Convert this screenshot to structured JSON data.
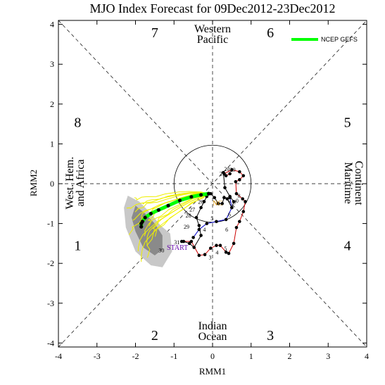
{
  "chart_data": {
    "type": "scatter",
    "title": "MJO Index Forecast for 09Dec2012-23Dec2012",
    "xlabel": "RMM1",
    "ylabel": "RMM2",
    "xlim": [
      -4,
      4
    ],
    "ylim": [
      -4.1,
      4.1
    ],
    "xticks": [
      "-4",
      "-3",
      "-2",
      "-1",
      "0",
      "1",
      "2",
      "3",
      "4"
    ],
    "yticks": [
      "-4",
      "-3",
      "-2",
      "-1",
      "0",
      "1",
      "2",
      "3",
      "4"
    ],
    "legend": {
      "label": "NCEP GEFS",
      "color": "#00ff00",
      "position": "top-right"
    },
    "phases": [
      {
        "num": "1",
        "x": -3.5,
        "y": -1.55
      },
      {
        "num": "2",
        "x": -1.5,
        "y": -3.8
      },
      {
        "num": "3",
        "x": 1.5,
        "y": -3.8
      },
      {
        "num": "4",
        "x": 3.5,
        "y": -1.55
      },
      {
        "num": "5",
        "x": 3.5,
        "y": 1.55
      },
      {
        "num": "6",
        "x": 1.5,
        "y": 3.8
      },
      {
        "num": "7",
        "x": -1.5,
        "y": 3.8
      },
      {
        "num": "8",
        "x": -3.5,
        "y": 1.55
      }
    ],
    "regions": {
      "top": [
        "Western",
        "Pacific"
      ],
      "bottom": [
        "Indian",
        "Ocean"
      ],
      "left": [
        "West. Hem.",
        "and Africa"
      ],
      "right": [
        "Maritime",
        "Continent"
      ]
    },
    "markers": {
      "start": "START",
      "ncep": "NC"
    },
    "shade_outer": [
      [
        -2.2,
        -0.3
      ],
      [
        -1.9,
        -0.45
      ],
      [
        -1.6,
        -0.75
      ],
      [
        -1.35,
        -1.05
      ],
      [
        -1.1,
        -1.25
      ],
      [
        -1.05,
        -1.7
      ],
      [
        -1.3,
        -2.1
      ],
      [
        -1.6,
        -2.05
      ],
      [
        -2.0,
        -1.7
      ],
      [
        -2.25,
        -1.1
      ],
      [
        -2.3,
        -0.6
      ]
    ],
    "shade_inner": [
      [
        -2.0,
        -0.55
      ],
      [
        -1.75,
        -0.75
      ],
      [
        -1.5,
        -1.0
      ],
      [
        -1.3,
        -1.3
      ],
      [
        -1.3,
        -1.65
      ],
      [
        -1.5,
        -1.8
      ],
      [
        -1.8,
        -1.6
      ],
      [
        -2.0,
        -1.2
      ],
      [
        -2.1,
        -0.85
      ]
    ],
    "obs_red": {
      "color": "#cc0000",
      "x": [
        -0.8,
        -0.55,
        -0.35,
        -0.2,
        -0.05,
        0.1,
        0.2,
        0.35,
        0.42,
        0.55,
        0.62,
        0.7,
        0.8,
        0.85,
        0.78,
        0.62,
        0.6,
        0.7,
        0.8,
        0.7,
        0.5,
        0.3,
        0.35,
        0.45
      ],
      "y": [
        -1.45,
        -1.45,
        -1.8,
        -1.78,
        -1.62,
        -1.55,
        -1.55,
        -1.72,
        -1.75,
        -1.5,
        -1.1,
        -0.95,
        -0.7,
        -0.45,
        -0.38,
        -0.25,
        0.05,
        0.1,
        0.2,
        0.3,
        0.35,
        0.25,
        0.2,
        0.25
      ]
    },
    "obs_black": {
      "x": [
        -0.75,
        -0.6,
        -0.48,
        -0.3,
        -0.35,
        -0.42,
        -0.3,
        -0.22,
        -0.15,
        -0.05,
        0.05,
        0.15,
        0.25,
        0.3,
        0.38,
        0.5,
        0.55,
        0.45,
        0.32,
        0.28
      ],
      "y": [
        -1.45,
        -1.5,
        -1.6,
        -1.3,
        -1.05,
        -0.85,
        -0.6,
        -0.45,
        -0.32,
        -0.25,
        -0.35,
        -0.5,
        -0.5,
        -0.35,
        -0.38,
        -0.6,
        -0.45,
        -0.32,
        -0.1,
        0.28
      ]
    },
    "obs_blue": {
      "color": "#0000cc",
      "x": [
        -0.5,
        -0.35,
        -0.15,
        0.1,
        0.35,
        0.5,
        0.45
      ],
      "y": [
        -1.35,
        -1.15,
        -1.0,
        -0.95,
        -0.9,
        -0.6,
        -0.35
      ]
    },
    "day_labels": [
      {
        "text": "31",
        "x": -1.0,
        "y": -1.52
      },
      {
        "text": "30",
        "x": -1.4,
        "y": -1.72
      },
      {
        "text": "29",
        "x": -0.75,
        "y": -1.13
      },
      {
        "text": "28",
        "x": -0.7,
        "y": -0.85
      },
      {
        "text": "27",
        "x": -0.6,
        "y": -0.7
      },
      {
        "text": "26",
        "x": -0.38,
        "y": -0.5
      },
      {
        "text": "5",
        "x": -0.05,
        "y": -0.92
      },
      {
        "text": "4",
        "x": -0.25,
        "y": -1.2
      },
      {
        "text": "6",
        "x": 0.33,
        "y": -1.2
      },
      {
        "text": "5",
        "x": 0.3,
        "y": -1.68
      },
      {
        "text": "3",
        "x": -0.1,
        "y": -1.9
      },
      {
        "text": "4",
        "x": 0.08,
        "y": -1.78
      },
      {
        "text": "6",
        "x": 0.4,
        "y": -0.82
      },
      {
        "text": "7",
        "x": 0.55,
        "y": -0.52
      },
      {
        "text": "8",
        "x": 0.65,
        "y": -0.35
      },
      {
        "text": "29",
        "x": 0.45,
        "y": 0.3
      },
      {
        "text": "20",
        "x": 0.3,
        "y": 0.32
      },
      {
        "text": "21",
        "x": 0.18,
        "y": 0.2
      },
      {
        "text": "0",
        "x": 0.6,
        "y": -0.48
      }
    ],
    "ens_mean": {
      "color": "#00ff00",
      "x": [
        -0.1,
        -0.3,
        -0.55,
        -0.85,
        -1.15,
        -1.4,
        -1.6,
        -1.75,
        -1.82,
        -1.85,
        -1.85
      ],
      "y": [
        -0.25,
        -0.28,
        -0.33,
        -0.42,
        -0.55,
        -0.66,
        -0.75,
        -0.85,
        -0.95,
        -1.0,
        -1.08
      ]
    }
  }
}
